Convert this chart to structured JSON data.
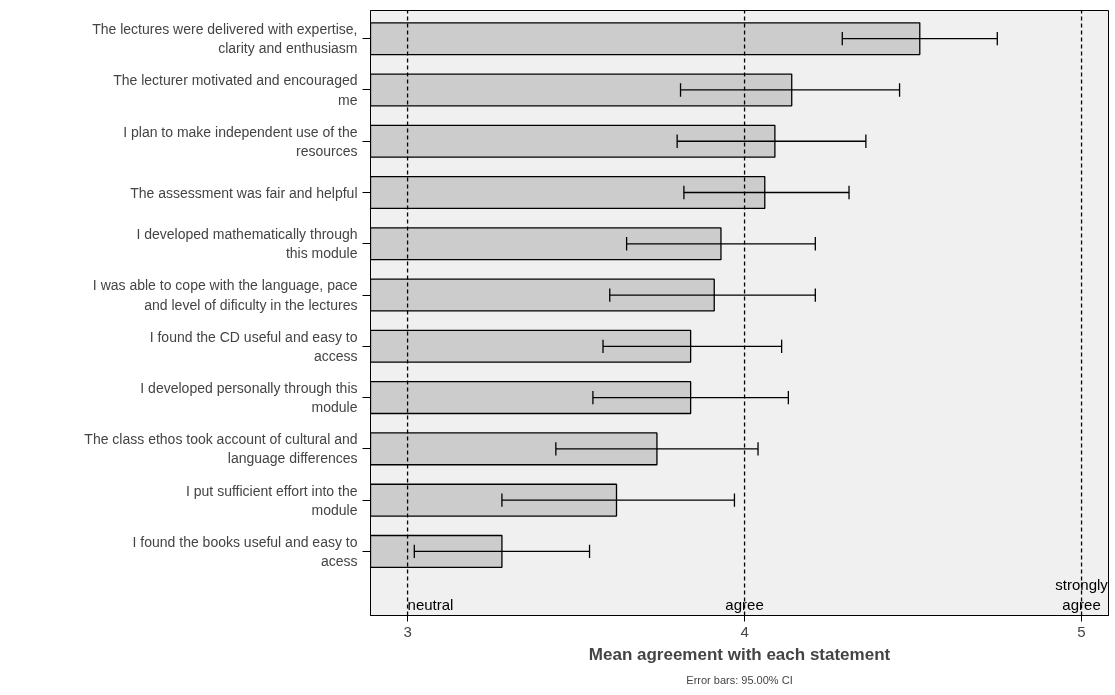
{
  "chart_data": {
    "type": "bar",
    "orientation": "horizontal",
    "xlabel": "Mean agreement with each statement",
    "categories": [
      "The lectures were delivered with expertise, clarity and enthusiasm",
      "The lecturer motivated and encouraged me",
      "I plan to make independent use of the resources",
      "The assessment was fair and helpful",
      "I developed mathematically through this module",
      "I was able to cope with the language, pace and level of dificulty in the lectures",
      "I found the CD useful and easy to access",
      "I developed personally through this module",
      "The class ethos took account of cultural and language differences",
      "I put sufficient effort into the module",
      "I found the books useful and easy to acess"
    ],
    "values": [
      4.52,
      4.14,
      4.09,
      4.06,
      3.93,
      3.91,
      3.84,
      3.84,
      3.74,
      3.62,
      3.28
    ],
    "errors": [
      [
        4.29,
        4.75
      ],
      [
        3.81,
        4.46
      ],
      [
        3.8,
        4.36
      ],
      [
        3.82,
        4.31
      ],
      [
        3.65,
        4.21
      ],
      [
        3.6,
        4.21
      ],
      [
        3.58,
        4.11
      ],
      [
        3.55,
        4.13
      ],
      [
        3.44,
        4.04
      ],
      [
        3.28,
        3.97
      ],
      [
        3.02,
        3.54
      ]
    ],
    "color": "#cccccc",
    "xlim": [
      2.89,
      5.08
    ],
    "xticks": [
      3,
      4,
      5
    ],
    "ref_lines": [
      {
        "axis": "x",
        "value": 3,
        "label": "neutral",
        "line_style": "dashed"
      },
      {
        "axis": "x",
        "value": 4,
        "label": "agree",
        "line_style": "dashed"
      },
      {
        "axis": "x",
        "value": 5,
        "label": "strongly agree",
        "line_style": "dashed"
      }
    ],
    "annotations": [
      "Error bars: 95.00% CI"
    ],
    "grid": false
  }
}
